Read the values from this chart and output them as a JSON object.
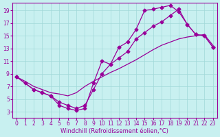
{
  "background_color": "#c8f0f0",
  "line_color": "#990099",
  "marker": "D",
  "markersize": 2.5,
  "linewidth": 0.9,
  "xlim": [
    -0.5,
    23.5
  ],
  "ylim": [
    2.0,
    20.2
  ],
  "xticks": [
    0,
    1,
    2,
    3,
    4,
    5,
    6,
    7,
    8,
    9,
    10,
    11,
    12,
    13,
    14,
    15,
    16,
    17,
    18,
    19,
    20,
    21,
    22,
    23
  ],
  "yticks": [
    3,
    5,
    7,
    9,
    11,
    13,
    15,
    17,
    19
  ],
  "grid_color": "#a0d8d8",
  "tick_fontsize": 5.5,
  "xlabel_fontsize": 6.0,
  "xlabel": "Windchill (Refroidissement éolien,°C)",
  "line1_x": [
    0,
    1,
    2,
    3,
    4,
    5,
    6,
    7,
    8,
    9,
    10,
    11,
    12,
    13,
    14,
    15,
    16,
    17,
    18,
    19,
    20,
    21,
    22,
    23
  ],
  "line1_y": [
    8.5,
    7.5,
    6.5,
    6.0,
    5.5,
    4.0,
    3.5,
    3.2,
    3.5,
    7.5,
    11.0,
    10.5,
    13.2,
    14.0,
    16.0,
    19.0,
    19.2,
    19.5,
    19.8,
    18.8,
    16.8,
    15.2,
    15.0,
    13.2
  ],
  "line2_x": [
    0,
    1,
    2,
    3,
    4,
    5,
    6,
    7,
    8,
    9,
    10,
    11,
    12,
    13,
    14,
    15,
    16,
    17,
    18,
    19,
    20,
    21,
    22,
    23
  ],
  "line2_y": [
    8.5,
    7.8,
    7.0,
    6.5,
    6.0,
    5.8,
    5.5,
    6.0,
    7.0,
    7.8,
    8.5,
    9.2,
    9.8,
    10.5,
    11.2,
    12.0,
    12.8,
    13.5,
    14.0,
    14.5,
    14.8,
    15.0,
    15.2,
    13.5
  ],
  "line3_x": [
    0,
    2,
    3,
    4,
    5,
    6,
    7,
    8,
    9,
    10,
    11,
    12,
    13,
    14,
    15,
    16,
    17,
    18,
    19,
    20,
    21,
    22,
    23
  ],
  "line3_y": [
    8.5,
    6.5,
    6.0,
    5.5,
    4.5,
    4.0,
    3.5,
    4.0,
    6.5,
    9.0,
    10.5,
    11.5,
    12.5,
    14.5,
    15.5,
    16.5,
    17.2,
    18.2,
    19.2,
    16.8,
    15.2,
    15.0,
    13.2
  ]
}
